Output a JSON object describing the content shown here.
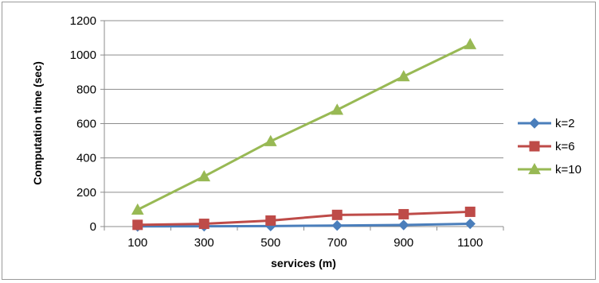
{
  "chart_data": {
    "type": "line",
    "title": "",
    "xlabel": "services (m)",
    "ylabel": "Computation time (sec)",
    "categories": [
      "100",
      "300",
      "500",
      "700",
      "900",
      "1100"
    ],
    "y_ticks": [
      "0",
      "200",
      "400",
      "600",
      "800",
      "1000",
      "1200"
    ],
    "ylim": [
      0,
      1200
    ],
    "grid": true,
    "legend_position": "right",
    "series": [
      {
        "name": "k=2",
        "values": [
          1,
          2,
          3,
          6,
          9,
          16
        ],
        "color": "#4a7ebb",
        "marker": "diamond"
      },
      {
        "name": "k=6",
        "values": [
          10,
          16,
          35,
          68,
          72,
          86
        ],
        "color": "#be4b48",
        "marker": "square"
      },
      {
        "name": "k=10",
        "values": [
          98,
          292,
          497,
          680,
          875,
          1062
        ],
        "color": "#98b954",
        "marker": "triangle"
      }
    ]
  }
}
